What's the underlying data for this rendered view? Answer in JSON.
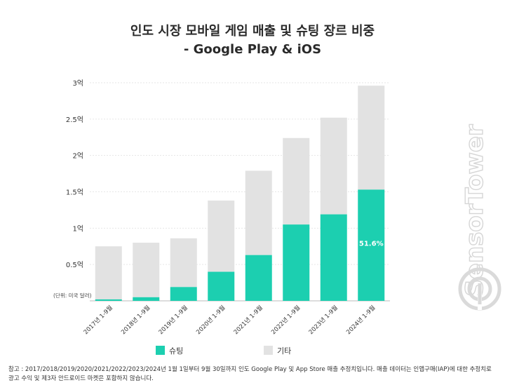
{
  "title_line1": "인도 시장 모바일 게임 매출 및 슈팅 장르 비중",
  "title_line2": "- Google Play & iOS",
  "unit_note": "(단위: 미국 달러)",
  "watermark": "SensorTower",
  "footnote_line1": "참고 : 2017/2018/2019/2020/2021/2022/2023/2024년 1월 1일부터 9월 30일까지 인도 Google Play 및 App Store 매출 추정치입니다. 매출 데이터는 인앱구매(IAP)에 대한 추정치로",
  "footnote_line2": "광고 수익 및 제3자 안드로이드 마켓은 포함하지 않습니다.",
  "colors": {
    "shooting": "#1ccfb0",
    "other": "#e2e2e2"
  },
  "chart_data": {
    "type": "bar",
    "stacked": true,
    "title": "인도 시장 모바일 게임 매출 및 슈팅 장르 비중 - Google Play & iOS",
    "categories": [
      "2017년 1-9월",
      "2018년 1-9월",
      "2019년 1-9월",
      "2020년 1-9월",
      "2021년 1-9월",
      "2022년 1-9월",
      "2023년 1-9월",
      "2024년 1-9월"
    ],
    "series": [
      {
        "name": "슈팅",
        "values": [
          0.02,
          0.05,
          0.19,
          0.4,
          0.63,
          1.05,
          1.19,
          1.53
        ]
      },
      {
        "name": "기타",
        "values": [
          0.73,
          0.75,
          0.67,
          0.98,
          1.16,
          1.19,
          1.33,
          1.43
        ]
      }
    ],
    "yticks": [
      {
        "value": 0.5,
        "label": "0.5억"
      },
      {
        "value": 1,
        "label": "1억"
      },
      {
        "value": 1.5,
        "label": "1.5억"
      },
      {
        "value": 2,
        "label": "2억"
      },
      {
        "value": 2.5,
        "label": "2.5억"
      },
      {
        "value": 3,
        "label": "3억"
      }
    ],
    "ylim": [
      0,
      3
    ],
    "grid": true,
    "annotations": [
      {
        "category": "2024년 1-9월",
        "text": "51.6%"
      }
    ],
    "legend_position": "bottom"
  }
}
